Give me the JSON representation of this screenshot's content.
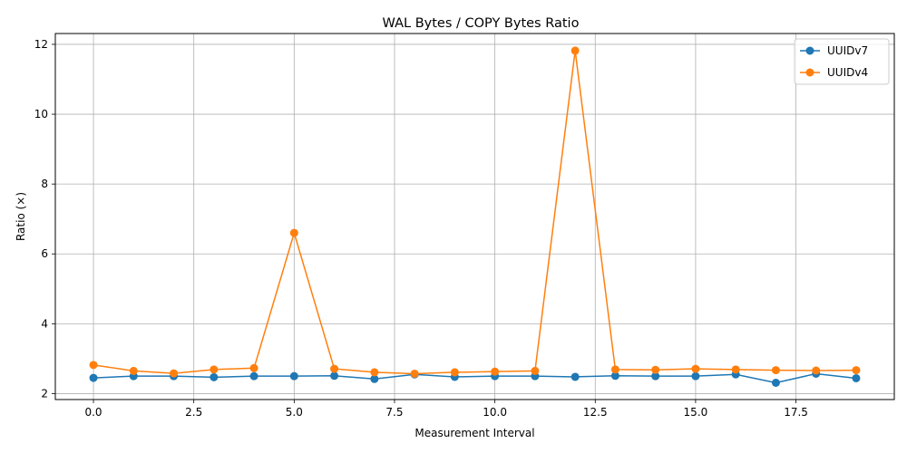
{
  "chart_data": {
    "type": "line",
    "title": "WAL Bytes / COPY Bytes Ratio",
    "xlabel": "Measurement Interval",
    "ylabel": "Ratio (×)",
    "xlim": [
      -0.95,
      19.95
    ],
    "ylim": [
      1.83,
      12.31
    ],
    "xticks": [
      0.0,
      2.5,
      5.0,
      7.5,
      10.0,
      12.5,
      15.0,
      17.5
    ],
    "xtick_labels": [
      "0.0",
      "2.5",
      "5.0",
      "7.5",
      "10.0",
      "12.5",
      "15.0",
      "17.5"
    ],
    "yticks": [
      2,
      4,
      6,
      8,
      10,
      12
    ],
    "ytick_labels": [
      "2",
      "4",
      "6",
      "8",
      "10",
      "12"
    ],
    "grid": true,
    "legend_position": "top-right",
    "x": [
      0,
      1,
      2,
      3,
      4,
      5,
      6,
      7,
      8,
      9,
      10,
      11,
      12,
      13,
      14,
      15,
      16,
      17,
      18,
      19
    ],
    "series": [
      {
        "name": "UUIDv7",
        "color": "#1f77b4",
        "values": [
          2.45,
          2.5,
          2.5,
          2.47,
          2.5,
          2.5,
          2.51,
          2.42,
          2.55,
          2.48,
          2.5,
          2.5,
          2.48,
          2.51,
          2.5,
          2.5,
          2.55,
          2.31,
          2.57,
          2.44
        ]
      },
      {
        "name": "UUIDv4",
        "color": "#ff7f0e",
        "values": [
          2.82,
          2.65,
          2.58,
          2.69,
          2.73,
          6.6,
          2.71,
          2.61,
          2.57,
          2.61,
          2.63,
          2.65,
          11.82,
          2.69,
          2.68,
          2.71,
          2.69,
          2.67,
          2.66,
          2.67
        ]
      }
    ]
  }
}
